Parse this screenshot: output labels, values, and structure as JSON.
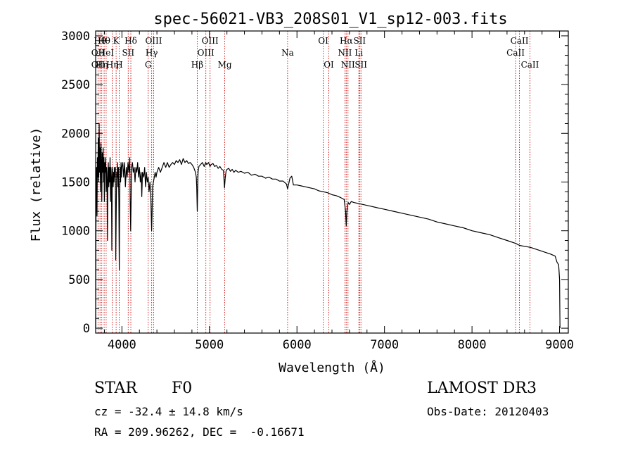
{
  "chart_data": {
    "type": "line",
    "title": "spec-56021-VB3_208S01_V1_sp12-003.fits",
    "xlabel": "Wavelength (Å)",
    "ylabel": "Flux (relative)",
    "xlim": [
      3700,
      9100
    ],
    "ylim": [
      -50,
      3050
    ],
    "x_ticks": [
      4000,
      5000,
      6000,
      7000,
      8000,
      9000
    ],
    "y_ticks": [
      0,
      500,
      1000,
      1500,
      2000,
      2500,
      3000
    ],
    "grid": false,
    "line_color": "#000000",
    "marker_color": "#cc0000",
    "series": [
      {
        "name": "spectrum",
        "points": [
          [
            3700,
            0
          ],
          [
            3705,
            1300
          ],
          [
            3710,
            1650
          ],
          [
            3715,
            1150
          ],
          [
            3720,
            1750
          ],
          [
            3725,
            1550
          ],
          [
            3730,
            1950
          ],
          [
            3735,
            1500
          ],
          [
            3740,
            2100
          ],
          [
            3745,
            1600
          ],
          [
            3750,
            1850
          ],
          [
            3755,
            1400
          ],
          [
            3760,
            1900
          ],
          [
            3765,
            1700
          ],
          [
            3770,
            1300
          ],
          [
            3775,
            1800
          ],
          [
            3780,
            1600
          ],
          [
            3785,
            1850
          ],
          [
            3790,
            1500
          ],
          [
            3795,
            1750
          ],
          [
            3800,
            1300
          ],
          [
            3805,
            1700
          ],
          [
            3810,
            1600
          ],
          [
            3815,
            1750
          ],
          [
            3820,
            1400
          ],
          [
            3825,
            1650
          ],
          [
            3830,
            1500
          ],
          [
            3835,
            900
          ],
          [
            3840,
            1600
          ],
          [
            3845,
            1700
          ],
          [
            3850,
            1450
          ],
          [
            3855,
            1650
          ],
          [
            3860,
            1500
          ],
          [
            3865,
            1750
          ],
          [
            3870,
            1300
          ],
          [
            3875,
            1650
          ],
          [
            3880,
            1550
          ],
          [
            3885,
            800
          ],
          [
            3890,
            1550
          ],
          [
            3895,
            1650
          ],
          [
            3900,
            1450
          ],
          [
            3905,
            1600
          ],
          [
            3910,
            1500
          ],
          [
            3915,
            1650
          ],
          [
            3920,
            1550
          ],
          [
            3925,
            1650
          ],
          [
            3930,
            700
          ],
          [
            3935,
            1150
          ],
          [
            3940,
            1600
          ],
          [
            3945,
            1550
          ],
          [
            3950,
            1700
          ],
          [
            3955,
            1450
          ],
          [
            3960,
            1650
          ],
          [
            3965,
            1300
          ],
          [
            3970,
            600
          ],
          [
            3975,
            1350
          ],
          [
            3980,
            1650
          ],
          [
            3985,
            1500
          ],
          [
            3990,
            1700
          ],
          [
            3995,
            1550
          ],
          [
            4000,
            1650
          ],
          [
            4010,
            1700
          ],
          [
            4020,
            1550
          ],
          [
            4030,
            1700
          ],
          [
            4040,
            1450
          ],
          [
            4050,
            1650
          ],
          [
            4060,
            1550
          ],
          [
            4070,
            1700
          ],
          [
            4080,
            1600
          ],
          [
            4090,
            1750
          ],
          [
            4095,
            1250
          ],
          [
            4100,
            1000
          ],
          [
            4105,
            1300
          ],
          [
            4110,
            1650
          ],
          [
            4120,
            1700
          ],
          [
            4130,
            1600
          ],
          [
            4140,
            1650
          ],
          [
            4150,
            1500
          ],
          [
            4160,
            1650
          ],
          [
            4170,
            1600
          ],
          [
            4180,
            1700
          ],
          [
            4190,
            1550
          ],
          [
            4200,
            1650
          ],
          [
            4210,
            1500
          ],
          [
            4220,
            1600
          ],
          [
            4227,
            1350
          ],
          [
            4235,
            1600
          ],
          [
            4250,
            1550
          ],
          [
            4260,
            1650
          ],
          [
            4270,
            1450
          ],
          [
            4280,
            1600
          ],
          [
            4290,
            1500
          ],
          [
            4300,
            1550
          ],
          [
            4310,
            1400
          ],
          [
            4320,
            1500
          ],
          [
            4330,
            1350
          ],
          [
            4340,
            1000
          ],
          [
            4345,
            1200
          ],
          [
            4350,
            1450
          ],
          [
            4360,
            1500
          ],
          [
            4370,
            1550
          ],
          [
            4380,
            1600
          ],
          [
            4390,
            1550
          ],
          [
            4400,
            1600
          ],
          [
            4420,
            1650
          ],
          [
            4440,
            1600
          ],
          [
            4460,
            1650
          ],
          [
            4480,
            1700
          ],
          [
            4500,
            1650
          ],
          [
            4520,
            1700
          ],
          [
            4540,
            1650
          ],
          [
            4560,
            1680
          ],
          [
            4580,
            1700
          ],
          [
            4600,
            1680
          ],
          [
            4620,
            1720
          ],
          [
            4640,
            1700
          ],
          [
            4660,
            1730
          ],
          [
            4680,
            1680
          ],
          [
            4700,
            1740
          ],
          [
            4720,
            1700
          ],
          [
            4740,
            1720
          ],
          [
            4760,
            1690
          ],
          [
            4780,
            1700
          ],
          [
            4800,
            1680
          ],
          [
            4820,
            1650
          ],
          [
            4840,
            1600
          ],
          [
            4850,
            1550
          ],
          [
            4855,
            1450
          ],
          [
            4861,
            1200
          ],
          [
            4866,
            1450
          ],
          [
            4870,
            1600
          ],
          [
            4880,
            1660
          ],
          [
            4900,
            1680
          ],
          [
            4920,
            1700
          ],
          [
            4940,
            1660
          ],
          [
            4957,
            1700
          ],
          [
            4970,
            1680
          ],
          [
            4990,
            1700
          ],
          [
            5007,
            1660
          ],
          [
            5020,
            1680
          ],
          [
            5040,
            1690
          ],
          [
            5060,
            1660
          ],
          [
            5080,
            1670
          ],
          [
            5100,
            1640
          ],
          [
            5120,
            1660
          ],
          [
            5140,
            1630
          ],
          [
            5160,
            1620
          ],
          [
            5172,
            1440
          ],
          [
            5180,
            1540
          ],
          [
            5190,
            1610
          ],
          [
            5200,
            1630
          ],
          [
            5220,
            1640
          ],
          [
            5240,
            1610
          ],
          [
            5260,
            1630
          ],
          [
            5280,
            1600
          ],
          [
            5300,
            1620
          ],
          [
            5330,
            1600
          ],
          [
            5360,
            1610
          ],
          [
            5400,
            1590
          ],
          [
            5440,
            1600
          ],
          [
            5480,
            1570
          ],
          [
            5520,
            1580
          ],
          [
            5560,
            1560
          ],
          [
            5600,
            1560
          ],
          [
            5640,
            1540
          ],
          [
            5680,
            1550
          ],
          [
            5720,
            1530
          ],
          [
            5760,
            1530
          ],
          [
            5800,
            1510
          ],
          [
            5840,
            1510
          ],
          [
            5880,
            1480
          ],
          [
            5893,
            1430
          ],
          [
            5900,
            1460
          ],
          [
            5920,
            1540
          ],
          [
            5940,
            1560
          ],
          [
            5960,
            1470
          ],
          [
            6000,
            1470
          ],
          [
            6050,
            1460
          ],
          [
            6100,
            1450
          ],
          [
            6150,
            1440
          ],
          [
            6200,
            1430
          ],
          [
            6250,
            1410
          ],
          [
            6300,
            1400
          ],
          [
            6350,
            1390
          ],
          [
            6400,
            1370
          ],
          [
            6450,
            1360
          ],
          [
            6500,
            1340
          ],
          [
            6540,
            1320
          ],
          [
            6555,
            1200
          ],
          [
            6563,
            1050
          ],
          [
            6570,
            1200
          ],
          [
            6585,
            1290
          ],
          [
            6600,
            1270
          ],
          [
            6620,
            1300
          ],
          [
            6650,
            1290
          ],
          [
            6700,
            1280
          ],
          [
            6750,
            1270
          ],
          [
            6800,
            1260
          ],
          [
            6850,
            1250
          ],
          [
            6900,
            1240
          ],
          [
            6950,
            1230
          ],
          [
            7000,
            1220
          ],
          [
            7100,
            1200
          ],
          [
            7200,
            1180
          ],
          [
            7300,
            1160
          ],
          [
            7400,
            1140
          ],
          [
            7500,
            1120
          ],
          [
            7600,
            1090
          ],
          [
            7700,
            1070
          ],
          [
            7800,
            1050
          ],
          [
            7900,
            1030
          ],
          [
            8000,
            1000
          ],
          [
            8100,
            980
          ],
          [
            8200,
            960
          ],
          [
            8300,
            930
          ],
          [
            8400,
            900
          ],
          [
            8500,
            870
          ],
          [
            8542,
            850
          ],
          [
            8600,
            840
          ],
          [
            8662,
            830
          ],
          [
            8700,
            820
          ],
          [
            8800,
            790
          ],
          [
            8900,
            760
          ],
          [
            8950,
            740
          ],
          [
            8970,
            680
          ],
          [
            8990,
            650
          ],
          [
            9000,
            500
          ],
          [
            9005,
            0
          ]
        ]
      }
    ],
    "line_markers": [
      {
        "x": 3727,
        "label": "OII",
        "row": 1
      },
      {
        "x": 3727,
        "label": "OII",
        "row": 2
      },
      {
        "x": 3750,
        "label": "Hθ",
        "row": 0
      },
      {
        "x": 3770,
        "label": "Hη",
        "row": 2
      },
      {
        "x": 3797,
        "label": "Hθ",
        "row": 0
      },
      {
        "x": 3820,
        "label": "HeI",
        "row": 1
      },
      {
        "x": 3890,
        "label": "Hη",
        "row": 2
      },
      {
        "x": 3934,
        "label": "K",
        "row": 0
      },
      {
        "x": 3969,
        "label": "H",
        "row": 2
      },
      {
        "x": 4072,
        "label": "SII",
        "row": 1
      },
      {
        "x": 4102,
        "label": "Hδ",
        "row": 0
      },
      {
        "x": 4300,
        "label": "G",
        "row": 2
      },
      {
        "x": 4340,
        "label": "Hγ",
        "row": 1
      },
      {
        "x": 4363,
        "label": "OIII",
        "row": 0
      },
      {
        "x": 4861,
        "label": "Hβ",
        "row": 2
      },
      {
        "x": 4959,
        "label": "OIII",
        "row": 1
      },
      {
        "x": 5007,
        "label": "OIII",
        "row": 0
      },
      {
        "x": 5175,
        "label": "Mg",
        "row": 2
      },
      {
        "x": 5893,
        "label": "Na",
        "row": 1
      },
      {
        "x": 6300,
        "label": "OI",
        "row": 0
      },
      {
        "x": 6364,
        "label": "OI",
        "row": 2
      },
      {
        "x": 6548,
        "label": "NII",
        "row": 1
      },
      {
        "x": 6563,
        "label": "Hα",
        "row": 0
      },
      {
        "x": 6583,
        "label": "NII",
        "row": 2
      },
      {
        "x": 6707,
        "label": "Li",
        "row": 1
      },
      {
        "x": 6716,
        "label": "SII",
        "row": 0
      },
      {
        "x": 6731,
        "label": "SII",
        "row": 2
      },
      {
        "x": 8498,
        "label": "CaII",
        "row": 1
      },
      {
        "x": 8542,
        "label": "CaII",
        "row": 0
      },
      {
        "x": 8662,
        "label": "CaII",
        "row": 2
      }
    ]
  },
  "info": {
    "object_class": "STAR",
    "subclass": "F0",
    "survey": "LAMOST DR3",
    "redshift": "cz = -32.4 ± 14.8 km/s",
    "obs_date": "Obs-Date: 20120403",
    "coords": "RA = 209.96262, DEC =  -0.16671"
  }
}
